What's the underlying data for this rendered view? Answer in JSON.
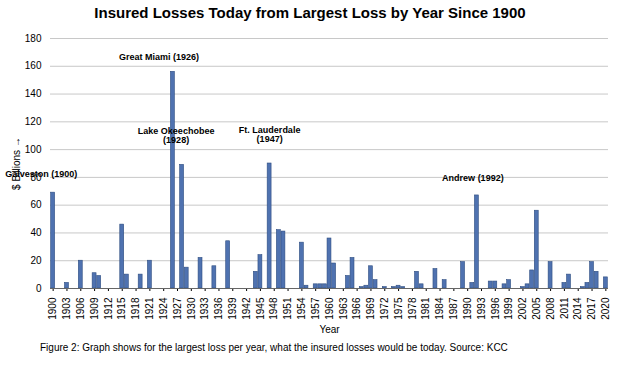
{
  "chart_data": {
    "type": "bar",
    "title": "Insured Losses Today from Largest Loss by Year Since 1900",
    "x_label": "Year",
    "y_label": "$ Billions",
    "caption": "Figure 2: Graph shows for the largest loss per year, what the insured losses would be today. Source: KCC",
    "categories": [
      "1900",
      null,
      null,
      "1903",
      null,
      null,
      "1906",
      null,
      null,
      "1909",
      null,
      null,
      "1912",
      null,
      null,
      "1915",
      null,
      null,
      "1918",
      null,
      null,
      "1921",
      null,
      null,
      "1924",
      null,
      null,
      "1927",
      null,
      null,
      "1930",
      null,
      null,
      "1933",
      null,
      null,
      "1936",
      null,
      null,
      "1939",
      null,
      null,
      "1942",
      null,
      null,
      "1945",
      null,
      null,
      "1948",
      null,
      null,
      "1951",
      null,
      null,
      "1954",
      null,
      null,
      "1957",
      null,
      null,
      "1960",
      null,
      null,
      "1963",
      null,
      null,
      "1966",
      null,
      null,
      "1969",
      null,
      null,
      "1972",
      null,
      null,
      "1975",
      null,
      null,
      "1978",
      null,
      null,
      "1981",
      null,
      null,
      "1984",
      null,
      null,
      "1987",
      null,
      null,
      "1990",
      null,
      null,
      "1993",
      null,
      null,
      "1996",
      null,
      null,
      "1999",
      null,
      null,
      "2002",
      null,
      null,
      "2005",
      null,
      null,
      "2008",
      null,
      null,
      "2011",
      null,
      null,
      "2014",
      null,
      null,
      "2017",
      null,
      null,
      "2020"
    ],
    "values": [
      69,
      null,
      null,
      4,
      null,
      null,
      20,
      null,
      null,
      11,
      9,
      null,
      null,
      null,
      null,
      46,
      10,
      null,
      null,
      10,
      null,
      20,
      null,
      null,
      null,
      null,
      156,
      null,
      89,
      15,
      null,
      null,
      22,
      null,
      null,
      16,
      null,
      null,
      34,
      null,
      null,
      null,
      null,
      null,
      12,
      24,
      null,
      90,
      null,
      42,
      41,
      null,
      null,
      null,
      33,
      2,
      null,
      3,
      3,
      3,
      36,
      18,
      null,
      null,
      9,
      22,
      null,
      1,
      2,
      16,
      6,
      null,
      1,
      null,
      1,
      2,
      1,
      null,
      null,
      12,
      3,
      null,
      null,
      14,
      null,
      6,
      null,
      null,
      null,
      19,
      null,
      4,
      67,
      null,
      null,
      5,
      5,
      null,
      3,
      6,
      null,
      null,
      1,
      3,
      13,
      56,
      null,
      null,
      19,
      null,
      null,
      4,
      10,
      null,
      null,
      1,
      4,
      19,
      12,
      null,
      8
    ],
    "color": "#4f72b0",
    "ylim": [
      0,
      180
    ],
    "yticks": [
      0,
      20,
      40,
      60,
      80,
      100,
      120,
      140,
      160,
      180
    ],
    "grid": true,
    "annotations": [
      {
        "text": "Galveston (1900)",
        "x": 1900
      },
      {
        "text": "Great Miami (1926)",
        "x": 1926
      },
      {
        "text": "Lake Okeechobee (1928)",
        "x": 1928
      },
      {
        "text": "Ft. Lauderdale (1947)",
        "x": 1947
      },
      {
        "text": "Andrew (1992)",
        "x": 1992
      }
    ]
  }
}
